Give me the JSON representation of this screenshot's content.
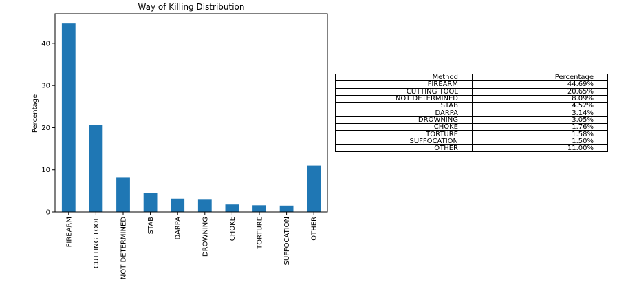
{
  "chart_data": {
    "type": "bar",
    "title": "Way of Killing Distribution",
    "xlabel": "",
    "ylabel": "Percentage",
    "categories": [
      "FIREARM",
      "CUTTING TOOL",
      "NOT DETERMINED",
      "STAB",
      "DARPA",
      "DROWNING",
      "CHOKE",
      "TORTURE",
      "SUFFOCATION",
      "OTHER"
    ],
    "values": [
      44.69,
      20.65,
      8.09,
      4.52,
      3.14,
      3.05,
      1.76,
      1.58,
      1.5,
      11.0
    ],
    "yticks": [
      0,
      10,
      20,
      30,
      40
    ],
    "ylim": [
      0,
      47
    ],
    "bar_color": "#1f77b4",
    "grid": false
  },
  "table": {
    "headers": [
      "Method",
      "Percentage"
    ],
    "rows": [
      [
        "FIREARM",
        "44.69%"
      ],
      [
        "CUTTING TOOL",
        "20.65%"
      ],
      [
        "NOT DETERMINED",
        "8.09%"
      ],
      [
        "STAB",
        "4.52%"
      ],
      [
        "DARPA",
        "3.14%"
      ],
      [
        "DROWNING",
        "3.05%"
      ],
      [
        "CHOKE",
        "1.76%"
      ],
      [
        "TORTURE",
        "1.58%"
      ],
      [
        "SUFFOCATION",
        "1.50%"
      ],
      [
        "OTHER",
        "11.00%"
      ]
    ]
  }
}
